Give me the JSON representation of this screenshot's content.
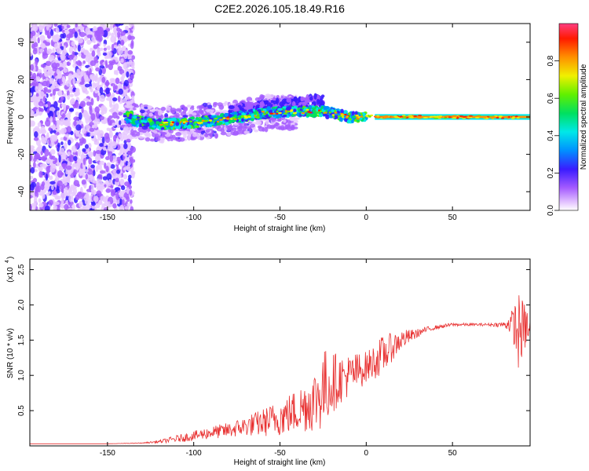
{
  "title": "C2E2.2026.105.18.49.R16",
  "chart_data": [
    {
      "type": "heatmap",
      "id": "spectrogram",
      "xlabel": "Height of straight line (km)",
      "ylabel": "Frequency (Hz)",
      "xlim": [
        -195,
        95
      ],
      "ylim": [
        -50,
        50
      ],
      "xticks": [
        -150,
        -100,
        -50,
        0,
        50
      ],
      "yticks": [
        -40,
        -20,
        0,
        20,
        40
      ],
      "trace": [
        {
          "x": -135,
          "y": -2
        },
        {
          "x": -120,
          "y": -4
        },
        {
          "x": -100,
          "y": -3
        },
        {
          "x": -80,
          "y": -1
        },
        {
          "x": -60,
          "y": 2
        },
        {
          "x": -40,
          "y": 3
        },
        {
          "x": -25,
          "y": 3
        },
        {
          "x": -10,
          "y": 0
        },
        {
          "x": 0,
          "y": 0
        },
        {
          "x": 95,
          "y": 0
        }
      ],
      "colorbar": {
        "label": "Normalized spectral amplitude",
        "range": [
          0,
          1
        ],
        "ticks": [
          "0.0",
          "0.2",
          "0.4",
          "0.6",
          "0.8"
        ],
        "tick_values": [
          0,
          0.2,
          0.4,
          0.6,
          0.8
        ]
      }
    },
    {
      "type": "line",
      "id": "snr",
      "xlabel": "Height of straight line (km)",
      "ylabel": "SNR (10 * v/v)",
      "exponent_label": "(x10",
      "exponent_power": "4",
      "exponent_close": ")",
      "xlim": [
        -195,
        95
      ],
      "ylim": [
        0,
        2.65
      ],
      "xticks": [
        -150,
        -100,
        -50,
        0,
        50
      ],
      "yticks": [
        "0.5",
        "1.0",
        "1.5",
        "2.0",
        "2.5"
      ],
      "ytick_values": [
        0.5,
        1.0,
        1.5,
        2.0,
        2.5
      ],
      "color": "#e83030",
      "series": [
        {
          "name": "SNR",
          "x": [
            -195,
            -150,
            -130,
            -120,
            -110,
            -100,
            -90,
            -80,
            -70,
            -60,
            -50,
            -40,
            -30,
            -25,
            -20,
            -15,
            -10,
            -5,
            0,
            5,
            10,
            15,
            20,
            25,
            30,
            35,
            40,
            50,
            60,
            70,
            80,
            85,
            88,
            90,
            93,
            95
          ],
          "y": [
            0.03,
            0.03,
            0.04,
            0.06,
            0.1,
            0.14,
            0.19,
            0.22,
            0.28,
            0.33,
            0.4,
            0.5,
            0.65,
            0.8,
            0.9,
            0.95,
            1.0,
            1.05,
            1.12,
            1.2,
            1.3,
            1.4,
            1.5,
            1.55,
            1.6,
            1.65,
            1.68,
            1.72,
            1.72,
            1.72,
            1.72,
            1.75,
            1.6,
            1.65,
            1.7,
            1.6
          ],
          "noise": [
            0,
            0,
            0.005,
            0.02,
            0.05,
            0.07,
            0.09,
            0.11,
            0.14,
            0.2,
            0.26,
            0.32,
            0.45,
            0.6,
            0.45,
            0.35,
            0.3,
            0.28,
            0.22,
            0.25,
            0.28,
            0.2,
            0.15,
            0.1,
            0.06,
            0.04,
            0.03,
            0.025,
            0.02,
            0.02,
            0.04,
            0.2,
            0.6,
            0.45,
            0.3,
            0.2
          ]
        }
      ]
    }
  ]
}
